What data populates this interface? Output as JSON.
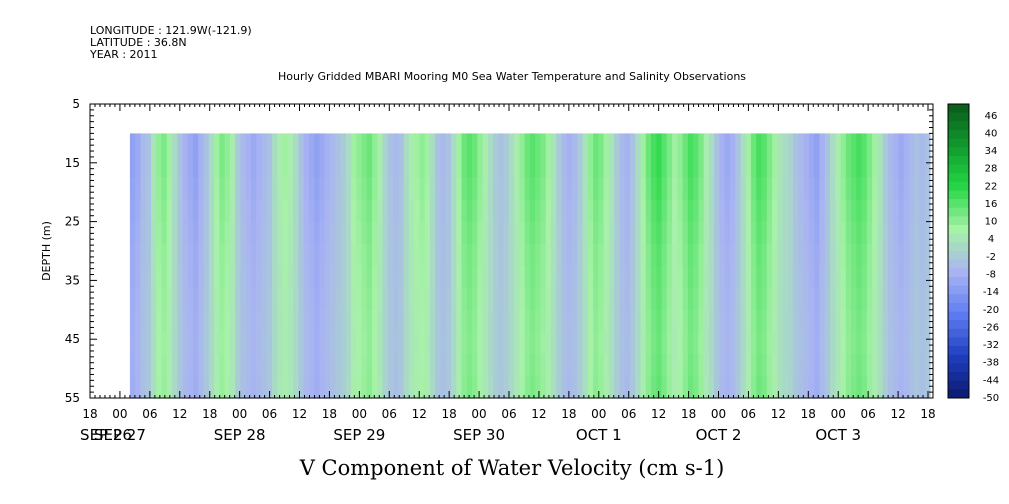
{
  "header": {
    "longitude": "LONGITUDE : 121.9W(-121.9)",
    "latitude": "LATITUDE : 36.8N",
    "year": "YEAR : 2011",
    "title": "Hourly Gridded MBARI Mooring M0 Sea Water Temperature and Salinity Observations"
  },
  "chart_data": {
    "type": "heatmap",
    "title": "Hourly Gridded MBARI Mooring M0 Sea Water Temperature and Salinity Observations",
    "xlabel": "V Component of Water Velocity (cm s-1)",
    "ylabel": "DEPTH (m)",
    "x_unit": "hour",
    "x_start": "2011-09-26T18:00",
    "x_end": "2011-10-03T19:00",
    "data_x_start": "2011-09-27T02:00",
    "y_ticks": [
      5,
      15,
      25,
      35,
      45,
      55
    ],
    "ylim": [
      5,
      55
    ],
    "y_inverted": true,
    "data_depth_range": [
      10,
      55
    ],
    "x_hour_ticks": [
      "18",
      "00",
      "06",
      "12",
      "18",
      "00",
      "06",
      "12",
      "18",
      "00",
      "06",
      "12",
      "18",
      "00",
      "06",
      "12",
      "18",
      "00",
      "06",
      "12",
      "18",
      "00",
      "06",
      "12",
      "18",
      "00",
      "06",
      "12",
      "18"
    ],
    "x_date_labels": [
      "SEP 26",
      "SEP 27",
      "SEP 28",
      "SEP 29",
      "SEP 30",
      "OCT 1",
      "OCT 2",
      "OCT 3"
    ],
    "colorbar_ticks": [
      "46",
      "40",
      "34",
      "28",
      "22",
      "16",
      "10",
      "4",
      "-2",
      "-8",
      "-14",
      "-20",
      "-26",
      "-32",
      "-38",
      "-44",
      "-50"
    ],
    "colorbar_range": [
      -50,
      50
    ],
    "colormap": [
      "#0a1a6e",
      "#1f3fc0",
      "#5f7df2",
      "#a9b4f2",
      "#a8f2a8",
      "#27d847",
      "#0f9a2c",
      "#0b5a1c"
    ],
    "column_values": [
      -12,
      -10,
      -6,
      -4,
      4,
      10,
      12,
      8,
      2,
      -4,
      -8,
      -10,
      -12,
      -8,
      -4,
      2,
      8,
      12,
      10,
      6,
      -2,
      -6,
      -8,
      -10,
      -8,
      -6,
      -4,
      2,
      6,
      8,
      6,
      2,
      -4,
      -8,
      -10,
      -12,
      -10,
      -8,
      -6,
      -4,
      -2,
      2,
      8,
      10,
      12,
      14,
      10,
      6,
      0,
      -4,
      -6,
      -4,
      2,
      6,
      8,
      10,
      8,
      2,
      -4,
      -6,
      -4,
      2,
      8,
      14,
      16,
      14,
      10,
      6,
      2,
      -2,
      -4,
      -2,
      2,
      6,
      10,
      14,
      16,
      14,
      12,
      8,
      4,
      -2,
      -6,
      -8,
      -6,
      -2,
      4,
      10,
      14,
      12,
      8,
      4,
      -2,
      -6,
      -8,
      -4,
      2,
      8,
      14,
      18,
      20,
      16,
      12,
      8,
      10,
      14,
      18,
      16,
      12,
      6,
      2,
      -4,
      -8,
      -10,
      -8,
      -4,
      2,
      8,
      14,
      18,
      16,
      12,
      8,
      4,
      2,
      0,
      -4,
      -6,
      -8,
      -10,
      -12,
      -8,
      -4,
      2,
      6,
      10,
      14,
      16,
      18,
      16,
      12,
      8,
      4,
      -2,
      -6,
      -8,
      -10,
      -8,
      -6,
      -4,
      -6,
      -4
    ],
    "depth_profile": [
      1.0,
      1.0,
      0.95,
      0.9,
      0.85,
      0.8,
      0.78,
      0.75,
      0.72,
      0.7,
      0.72,
      0.75
    ]
  }
}
